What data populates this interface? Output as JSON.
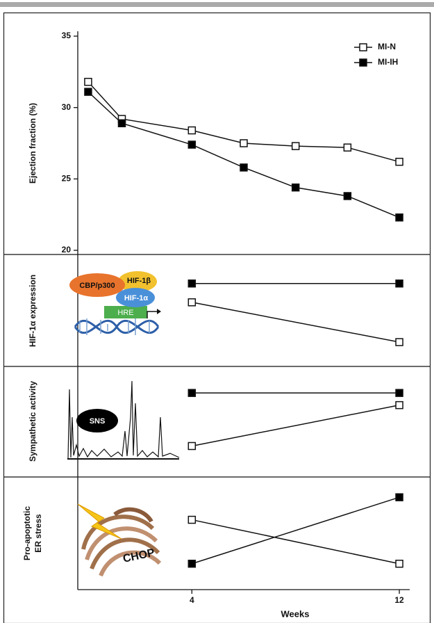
{
  "chart_data": [
    {
      "type": "line",
      "ylabel": "Ejection fraction (%)",
      "x": [
        0,
        1.3,
        4,
        6,
        8,
        10,
        12
      ],
      "xlim": [
        -0.4,
        12.4
      ],
      "ylim": [
        20,
        35
      ],
      "yticks": [
        20,
        25,
        30,
        35
      ],
      "legend": "top-right",
      "series": [
        {
          "name": "MI-N",
          "color": "#ffffff",
          "values": [
            31.8,
            29.2,
            28.4,
            27.5,
            27.3,
            27.2,
            26.2
          ]
        },
        {
          "name": "MI-IH",
          "color": "#000000",
          "values": [
            31.1,
            28.9,
            27.4,
            25.8,
            24.4,
            23.8,
            22.3
          ]
        }
      ]
    },
    {
      "type": "line",
      "ylabel": "HIF-1α expression",
      "annotations": [
        "CBP/p300",
        "HIF-1β",
        "HIF-1α",
        "HRE"
      ],
      "x": [
        4,
        12
      ],
      "xlim": [
        -0.4,
        12.4
      ],
      "ylim": [
        0,
        1
      ],
      "series": [
        {
          "color": "#ffffff",
          "values": [
            0.58,
            0.22
          ]
        },
        {
          "color": "#000000",
          "values": [
            0.75,
            0.75
          ]
        }
      ]
    },
    {
      "type": "line",
      "ylabel": "Sympathetic activity",
      "annotations": [
        "SNS"
      ],
      "x": [
        4,
        12
      ],
      "xlim": [
        -0.4,
        12.4
      ],
      "ylim": [
        0,
        1
      ],
      "series": [
        {
          "color": "#ffffff",
          "values": [
            0.28,
            0.65
          ]
        },
        {
          "color": "#000000",
          "values": [
            0.76,
            0.76
          ]
        }
      ]
    },
    {
      "type": "line",
      "ylabel": [
        "Pro-apoptotic",
        "ER stress"
      ],
      "annotations": [
        "CHOP"
      ],
      "xlabel": "Weeks",
      "x": [
        4,
        12
      ],
      "xlim": [
        -0.4,
        12.4
      ],
      "xticks": [
        4,
        12
      ],
      "ylim": [
        0,
        1
      ],
      "series": [
        {
          "color": "#ffffff",
          "values": [
            0.62,
            0.23
          ]
        },
        {
          "color": "#000000",
          "values": [
            0.23,
            0.82
          ]
        }
      ]
    }
  ]
}
